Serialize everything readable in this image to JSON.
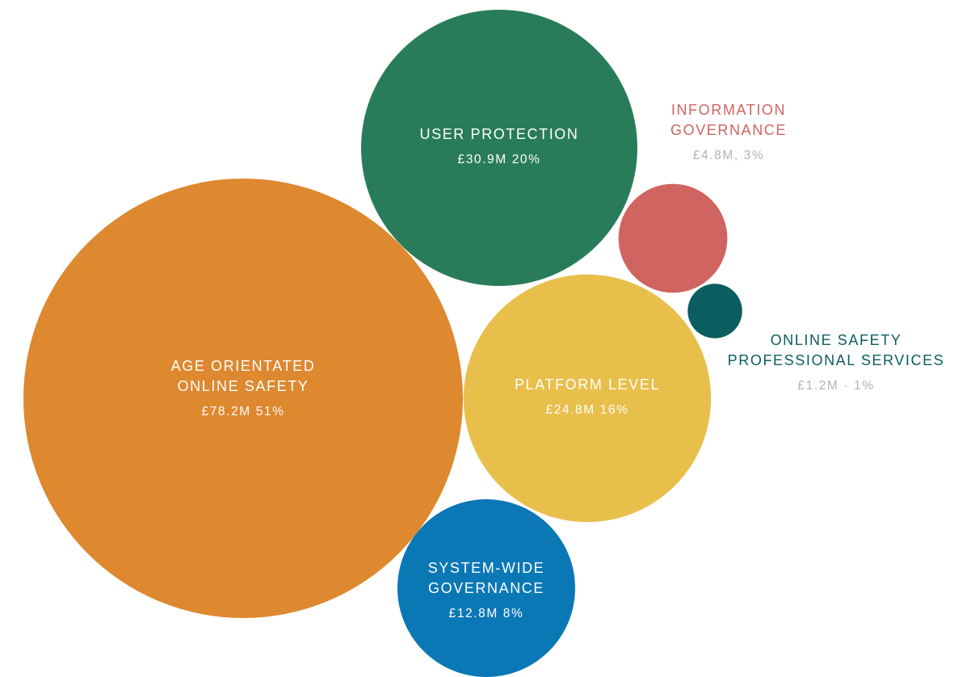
{
  "chart_data": {
    "type": "bubble",
    "unit": "£M",
    "items": [
      {
        "key": "age",
        "name_lines": [
          "AGE ORIENTATED",
          "ONLINE SAFETY"
        ],
        "value": 78.2,
        "percent": 51,
        "value_label": "£78.2M   51%",
        "color": "#de882f",
        "text_color": "#ffffff",
        "label_placement": "inside"
      },
      {
        "key": "user",
        "name_lines": [
          "USER PROTECTION"
        ],
        "value": 30.9,
        "percent": 20,
        "value_label": "£30.9M   20%",
        "color": "#297c5a",
        "text_color": "#ffffff",
        "label_placement": "inside"
      },
      {
        "key": "platform",
        "name_lines": [
          "PLATFORM LEVEL"
        ],
        "value": 24.8,
        "percent": 16,
        "value_label": "£24.8M   16%",
        "color": "#e8bf4b",
        "text_color": "#ffffff",
        "label_placement": "inside"
      },
      {
        "key": "system",
        "name_lines": [
          "SYSTEM-WIDE",
          "GOVERNANCE"
        ],
        "value": 12.8,
        "percent": 8,
        "value_label": "£12.8M   8%",
        "color": "#0b78b6",
        "text_color": "#ffffff",
        "label_placement": "inside"
      },
      {
        "key": "info",
        "name_lines": [
          "INFORMATION",
          "GOVERNANCE"
        ],
        "value": 4.8,
        "percent": 3,
        "value_label": "£4.8M, 3%",
        "color": "#d06461",
        "text_color": "#d06461",
        "value_color": "#b3b3b3",
        "label_placement": "above"
      },
      {
        "key": "online",
        "name_lines": [
          "ONLINE SAFETY",
          "PROFESSIONAL SERVICES"
        ],
        "value": 1.2,
        "percent": 1,
        "value_label": "£1.2M · 1%",
        "color": "#0b5d60",
        "text_color": "#0b5d60",
        "value_color": "#b3b3b3",
        "label_placement": "below-right"
      }
    ]
  }
}
